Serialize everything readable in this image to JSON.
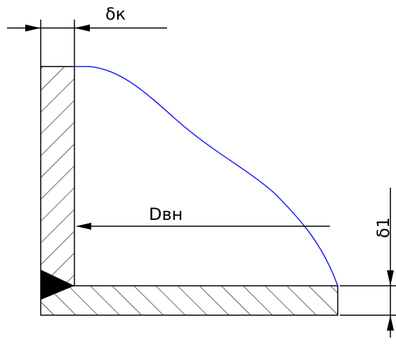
{
  "labels": {
    "wall_thickness": "δк",
    "inner_diameter": "Dвн",
    "bottom_thickness": "δ1"
  }
}
